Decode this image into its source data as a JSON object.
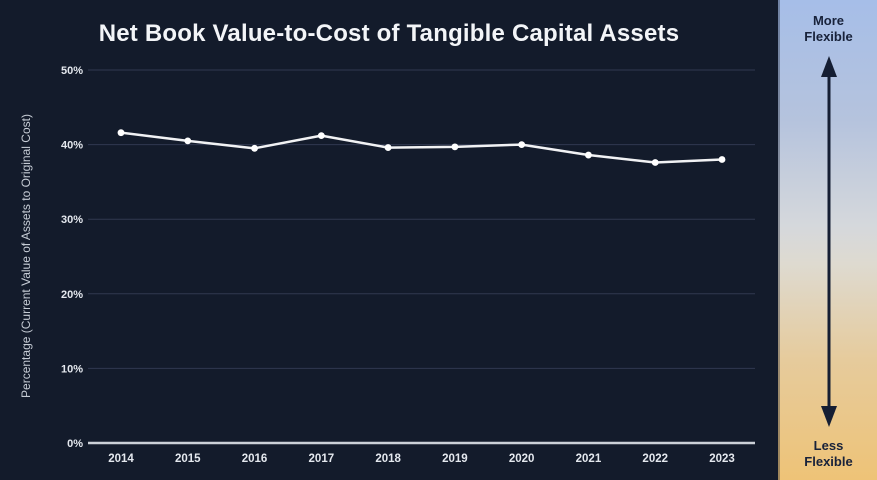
{
  "title": "Net Book Value-to-Cost of Tangible Capital Assets",
  "chart_data": {
    "type": "line",
    "title": "Net Book Value-to-Cost of Tangible Capital Assets",
    "categories": [
      "2014",
      "2015",
      "2016",
      "2017",
      "2018",
      "2019",
      "2020",
      "2021",
      "2022",
      "2023"
    ],
    "values": [
      41.6,
      40.5,
      39.5,
      41.2,
      39.6,
      39.7,
      40.0,
      38.6,
      37.6,
      38.0
    ],
    "xlabel": "",
    "ylabel": "Percentage (Current Value of Assets to Original Cost)",
    "ylim": [
      0,
      50
    ],
    "yticks": [
      0,
      10,
      20,
      30,
      40,
      50
    ],
    "ytick_labels": [
      "0%",
      "10%",
      "20%",
      "30%",
      "40%",
      "50%"
    ],
    "grid": true,
    "legend": false,
    "background_color": "#131b2b",
    "line_color": "#f1f2f4",
    "marker_color": "#ffffff",
    "gridline_color": "#313950",
    "axis_color": "#ccd1d8",
    "tick_label_color": "#e4e8ee"
  },
  "sidebar": {
    "top_label": "More Flexible",
    "bottom_label": "Less Flexible",
    "arrow_icon": "up-down-arrow",
    "arrow_color": "#151e33",
    "gradient_top_color": "#a6bee8",
    "gradient_bottom_color": "#eec377",
    "label_color": "#18223a"
  }
}
